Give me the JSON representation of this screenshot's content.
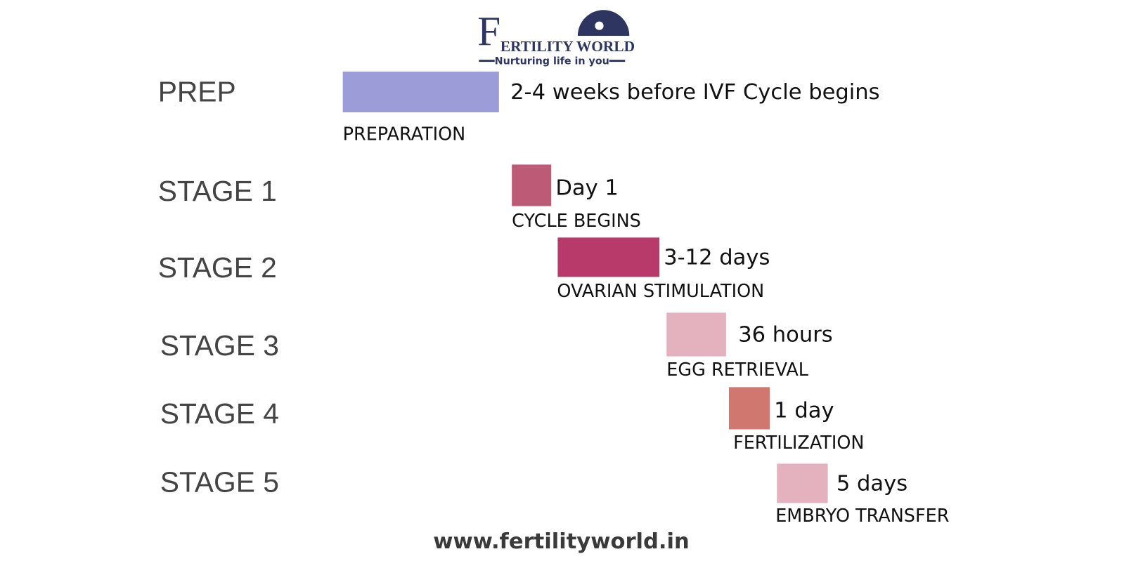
{
  "logo": {
    "initial": "F",
    "name": "ERTILITY WORLD",
    "tagline": "Nurturing life in you"
  },
  "rows": [
    {
      "stage": "PREP",
      "duration": "2-4 weeks before IVF Cycle begins",
      "name": "PREPARATION",
      "color": "#9c9cd8"
    },
    {
      "stage": "STAGE 1",
      "duration": "Day 1",
      "name": "CYCLE BEGINS",
      "color": "#bd5b77"
    },
    {
      "stage": "STAGE 2",
      "duration": "3-12 days",
      "name": "OVARIAN STIMULATION",
      "color": "#b83a6a"
    },
    {
      "stage": "STAGE 3",
      "duration": "36 hours",
      "name": "EGG RETRIEVAL",
      "color": "#e4b1bf"
    },
    {
      "stage": "STAGE 4",
      "duration": "1 day",
      "name": "FERTILIZATION",
      "color": "#d07870"
    },
    {
      "stage": "STAGE 5",
      "duration": "5 days",
      "name": "EMBRYO TRANSFER",
      "color": "#e4b1bf"
    }
  ],
  "footer": "www.fertilityworld.in"
}
